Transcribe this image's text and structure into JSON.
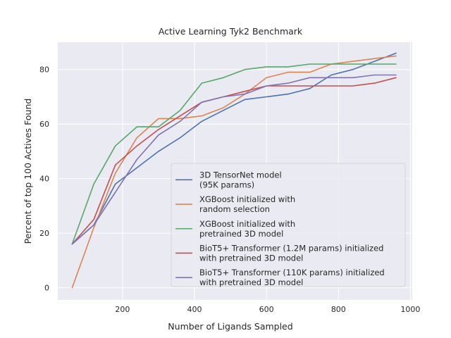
{
  "chart_data": {
    "type": "line",
    "title": "Active Learning Tyk2 Benchmark",
    "xlabel": "Number of Ligands Sampled",
    "ylabel": "Percent of top 100 Actives Found",
    "xlim": [
      20,
      1005
    ],
    "ylim": [
      -4.5,
      90
    ],
    "xticks": [
      200,
      400,
      600,
      800,
      1000
    ],
    "yticks": [
      0,
      20,
      40,
      60,
      80
    ],
    "grid": true,
    "legend_position": "lower-right",
    "x": [
      60,
      120,
      180,
      240,
      300,
      360,
      420,
      480,
      540,
      600,
      660,
      720,
      780,
      840,
      900,
      960
    ],
    "series": [
      {
        "name_lines": [
          "3D TensorNet model",
          "(95K params)"
        ],
        "color": "#4c72b0",
        "values": [
          16,
          23,
          38,
          44,
          50,
          55,
          61,
          65,
          69,
          70,
          71,
          73,
          78,
          80,
          83,
          86
        ]
      },
      {
        "name_lines": [
          "XGBoost initialized with",
          "random selection"
        ],
        "color": "#dd8452",
        "values": [
          0,
          22,
          42,
          55,
          62,
          62,
          63,
          66,
          71,
          77,
          79,
          79,
          82,
          83,
          84,
          85
        ]
      },
      {
        "name_lines": [
          "XGBoost initialized with",
          "pretrained 3D model"
        ],
        "color": "#55a868",
        "values": [
          16,
          38,
          52,
          59,
          59,
          65,
          75,
          77,
          80,
          81,
          81,
          82,
          82,
          82,
          82,
          82
        ]
      },
      {
        "name_lines": [
          "BioT5+ Transformer (1.2M params) initialized",
          "with pretrained 3D model"
        ],
        "color": "#c44e52",
        "values": [
          16,
          25,
          45,
          52,
          58,
          63,
          68,
          70,
          72,
          74,
          74,
          74,
          74,
          74,
          75,
          77
        ]
      },
      {
        "name_lines": [
          "BioT5+ Transformer (110K params) initialized",
          "with pretrained 3D model"
        ],
        "color": "#8172b3",
        "values": [
          16,
          23,
          35,
          47,
          56,
          61,
          68,
          70,
          71,
          74,
          75,
          77,
          77,
          77,
          78,
          78
        ]
      }
    ]
  }
}
